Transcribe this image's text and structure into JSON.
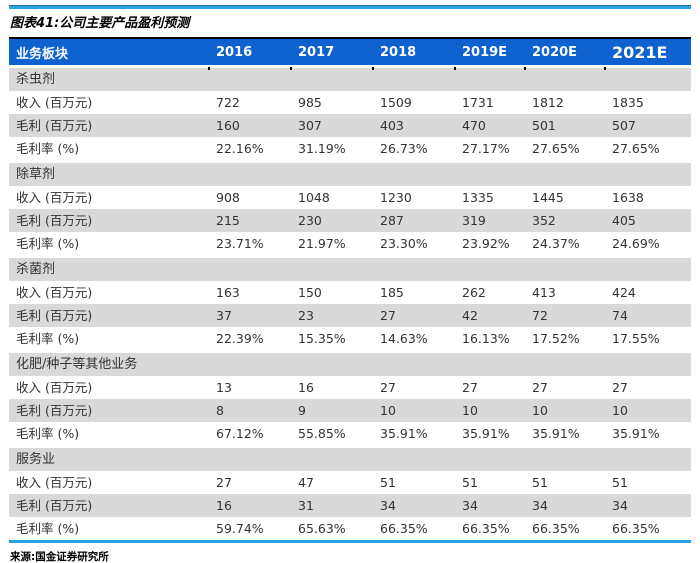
{
  "title": "图表41:公司主要产品盈利预测",
  "source": "来源:国金证券研究所",
  "colors": {
    "header_bg": "#0D62D0",
    "stripe_gray": "#D9D9D9",
    "rule_cyan": "#2BA1DF",
    "line_black": "#000000"
  },
  "table": {
    "columns": [
      "业务板块",
      "2016",
      "2017",
      "2018",
      "2019E",
      "2020E",
      "2021E"
    ],
    "sections": [
      {
        "name": "杀虫剂",
        "rows": [
          [
            "收入 (百万元)",
            "722",
            "985",
            "1509",
            "1731",
            "1812",
            "1835"
          ],
          [
            "毛利 (百万元)",
            "160",
            "307",
            "403",
            "470",
            "501",
            "507"
          ],
          [
            "毛利率 (%)",
            "22.16%",
            "31.19%",
            "26.73%",
            "27.17%",
            "27.65%",
            "27.65%"
          ]
        ]
      },
      {
        "name": "除草剂",
        "rows": [
          [
            "收入 (百万元)",
            "908",
            "1048",
            "1230",
            "1335",
            "1445",
            "1638"
          ],
          [
            "毛利 (百万元)",
            "215",
            "230",
            "287",
            "319",
            "352",
            "405"
          ],
          [
            "毛利率 (%)",
            "23.71%",
            "21.97%",
            "23.30%",
            "23.92%",
            "24.37%",
            "24.69%"
          ]
        ]
      },
      {
        "name": "杀菌剂",
        "rows": [
          [
            "收入 (百万元)",
            "163",
            "150",
            "185",
            "262",
            "413",
            "424"
          ],
          [
            "毛利 (百万元)",
            "37",
            "23",
            "27",
            "42",
            "72",
            "74"
          ],
          [
            "毛利率 (%)",
            "22.39%",
            "15.35%",
            "14.63%",
            "16.13%",
            "17.52%",
            "17.55%"
          ]
        ]
      },
      {
        "name": "化肥/种子等其他业务",
        "rows": [
          [
            "收入 (百万元)",
            "13",
            "16",
            "27",
            "27",
            "27",
            "27"
          ],
          [
            "毛利 (百万元)",
            "8",
            "9",
            "10",
            "10",
            "10",
            "10"
          ],
          [
            "毛利率 (%)",
            "67.12%",
            "55.85%",
            "35.91%",
            "35.91%",
            "35.91%",
            "35.91%"
          ]
        ]
      },
      {
        "name": "服务业",
        "rows": [
          [
            "收入 (百万元)",
            "27",
            "47",
            "51",
            "51",
            "51",
            "51"
          ],
          [
            "毛利 (百万元)",
            "16",
            "31",
            "34",
            "34",
            "34",
            "34"
          ],
          [
            "毛利率 (%)",
            "59.74%",
            "65.63%",
            "66.35%",
            "66.35%",
            "66.35%",
            "66.35%"
          ]
        ]
      }
    ]
  }
}
